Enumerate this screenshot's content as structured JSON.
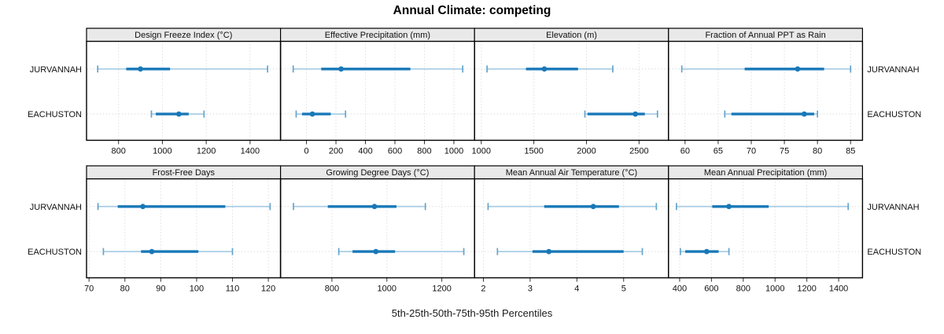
{
  "title": "Annual Climate: competing",
  "chart_data": {
    "type": "scatter",
    "style": "lattice-percentile-interval-dotplot",
    "title": "Annual Climate: competing",
    "xlabel": "5th-25th-50th-75th-95th Percentiles",
    "legend_position": "none",
    "grid": "dotted",
    "categories": [
      "JURVANNAH",
      "EACHUSTON"
    ],
    "percentile_labels": [
      "5th",
      "25th",
      "50th",
      "75th",
      "95th"
    ],
    "colors": {
      "median_dot": "#1878b8",
      "iqr_line": "#1878b8",
      "whisker_line": "#a9cde5",
      "whisker_cap": "#64a4cc",
      "gridline": "#cfcfcf",
      "strip_background": "#e9e9e9",
      "panel_border": "#000000"
    },
    "panels": [
      {
        "strip_label": "Design Freeze Index (°C)",
        "row": 0,
        "col": 0,
        "xlim": [
          654,
          1539
        ],
        "ticks": [
          800,
          1000,
          1200,
          1400
        ],
        "values": [
          [
            705,
            835,
            900,
            1035,
            1480
          ],
          [
            950,
            970,
            1075,
            1120,
            1190
          ]
        ]
      },
      {
        "strip_label": "Effective Precipitation (mm)",
        "row": 0,
        "col": 1,
        "xlim": [
          -176,
          1140
        ],
        "ticks": [
          0,
          200,
          400,
          600,
          800,
          1000
        ],
        "values": [
          [
            -90,
            100,
            235,
            705,
            1060
          ],
          [
            -70,
            -30,
            40,
            165,
            265
          ]
        ]
      },
      {
        "strip_label": "Elevation (m)",
        "row": 0,
        "col": 2,
        "xlim": [
          936,
          2780
        ],
        "ticks": [
          1000,
          1500,
          2000,
          2500
        ],
        "values": [
          [
            1055,
            1425,
            1600,
            1920,
            2250
          ],
          [
            1985,
            2010,
            2465,
            2555,
            2675
          ]
        ]
      },
      {
        "strip_label": "Fraction of Annual PPT as Rain",
        "row": 0,
        "col": 3,
        "xlim": [
          57.5,
          86.8
        ],
        "ticks": [
          60,
          65,
          70,
          75,
          80,
          85
        ],
        "values": [
          [
            59.5,
            69,
            77,
            81,
            85
          ],
          [
            66,
            67,
            78,
            79.5,
            80
          ]
        ]
      },
      {
        "strip_label": "Frost-Free Days",
        "row": 1,
        "col": 0,
        "xlim": [
          69.3,
          123.4
        ],
        "ticks": [
          70,
          80,
          90,
          100,
          110,
          120
        ],
        "values": [
          [
            72.5,
            78,
            85,
            108,
            120.5
          ],
          [
            74,
            84.5,
            87.5,
            100.5,
            110
          ]
        ]
      },
      {
        "strip_label": "Growing Degree Days (°C)",
        "row": 1,
        "col": 1,
        "xlim": [
          613,
          1319
        ],
        "ticks": [
          800,
          1000,
          1200
        ],
        "values": [
          [
            660,
            785,
            955,
            1035,
            1140
          ],
          [
            825,
            875,
            960,
            1030,
            1280
          ]
        ]
      },
      {
        "strip_label": "Mean Annual Air Temperature (°C)",
        "row": 1,
        "col": 2,
        "xlim": [
          1.81,
          5.96
        ],
        "ticks": [
          2,
          3,
          4,
          5
        ],
        "values": [
          [
            2.1,
            3.3,
            4.35,
            4.9,
            5.7
          ],
          [
            2.3,
            3.05,
            3.4,
            5.0,
            5.4
          ]
        ]
      },
      {
        "strip_label": "Mean Annual Precipitation (mm)",
        "row": 1,
        "col": 3,
        "xlim": [
          330,
          1550
        ],
        "ticks": [
          400,
          600,
          800,
          1000,
          1200,
          1400
        ],
        "values": [
          [
            380,
            605,
            710,
            960,
            1460
          ],
          [
            405,
            435,
            570,
            645,
            710
          ]
        ]
      }
    ]
  }
}
